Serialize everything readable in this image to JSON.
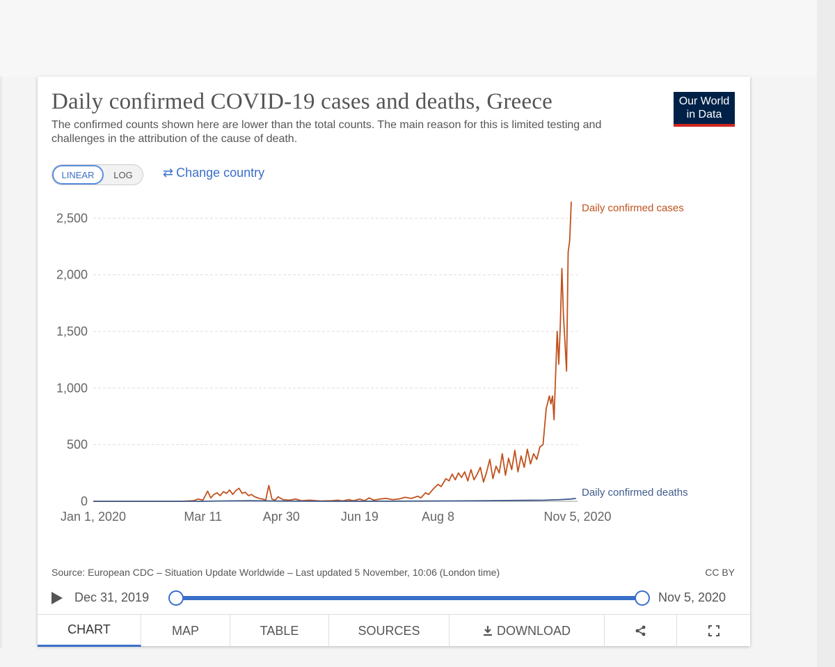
{
  "title": "Daily confirmed COVID-19 cases and deaths, Greece",
  "subtitle": "The confirmed counts shown here are lower than the total counts. The main reason for this is limited testing and challenges in the attribution of the cause of death.",
  "logo": {
    "line1": "Our World",
    "line2": "in Data"
  },
  "scale_toggle": {
    "linear": "LINEAR",
    "log": "LOG",
    "selected": "LINEAR"
  },
  "change_country": "Change country",
  "source_text": "Source: European CDC – Situation Update Worldwide – Last updated 5 November, 10:06 (London time)",
  "license": "CC BY",
  "timeline": {
    "start": "Dec 31, 2019",
    "end": "Nov 5, 2020"
  },
  "tabs": {
    "chart": "CHART",
    "map": "MAP",
    "table": "TABLE",
    "sources": "SOURCES",
    "download": "DOWNLOAD"
  },
  "colors": {
    "cases": "#c0511d",
    "deaths": "#3f5a8a",
    "accent": "#3a6fc8",
    "logo_bg": "#002147"
  },
  "icons": {
    "change": "swap-arrows-icon",
    "play": "play-icon",
    "download": "download-icon",
    "share": "share-icon",
    "fullscreen": "fullscreen-icon"
  },
  "chart_data": {
    "type": "line",
    "title": "Daily confirmed COVID-19 cases and deaths, Greece",
    "x_range": [
      "2020-01-01",
      "2020-11-05"
    ],
    "x_ticks": [
      "Jan 1, 2020",
      "Mar 11",
      "Apr 30",
      "Jun 19",
      "Aug 8",
      "Nov 5, 2020"
    ],
    "ylim": [
      0,
      2650
    ],
    "y_ticks": [
      0,
      500,
      1000,
      1500,
      2000,
      2500
    ],
    "y_tick_labels": [
      "0",
      "500",
      "1,000",
      "1,500",
      "2,000",
      "2,500"
    ],
    "grid": true,
    "legend": "inline-end-labels",
    "series": [
      {
        "name": "Daily confirmed cases",
        "color": "#c0511d",
        "points": [
          [
            "2020-01-01",
            0
          ],
          [
            "2020-02-26",
            0
          ],
          [
            "2020-03-05",
            5
          ],
          [
            "2020-03-08",
            20
          ],
          [
            "2020-03-11",
            10
          ],
          [
            "2020-03-14",
            90
          ],
          [
            "2020-03-16",
            30
          ],
          [
            "2020-03-18",
            60
          ],
          [
            "2020-03-20",
            75
          ],
          [
            "2020-03-22",
            50
          ],
          [
            "2020-03-24",
            85
          ],
          [
            "2020-03-26",
            70
          ],
          [
            "2020-03-28",
            100
          ],
          [
            "2020-03-30",
            60
          ],
          [
            "2020-04-01",
            95
          ],
          [
            "2020-04-03",
            115
          ],
          [
            "2020-04-05",
            70
          ],
          [
            "2020-04-07",
            80
          ],
          [
            "2020-04-09",
            50
          ],
          [
            "2020-04-11",
            60
          ],
          [
            "2020-04-13",
            40
          ],
          [
            "2020-04-16",
            25
          ],
          [
            "2020-04-18",
            20
          ],
          [
            "2020-04-20",
            10
          ],
          [
            "2020-04-22",
            140
          ],
          [
            "2020-04-24",
            20
          ],
          [
            "2020-04-26",
            10
          ],
          [
            "2020-04-28",
            40
          ],
          [
            "2020-05-01",
            15
          ],
          [
            "2020-05-05",
            10
          ],
          [
            "2020-05-09",
            20
          ],
          [
            "2020-05-13",
            5
          ],
          [
            "2020-05-18",
            10
          ],
          [
            "2020-05-25",
            3
          ],
          [
            "2020-06-01",
            5
          ],
          [
            "2020-06-05",
            10
          ],
          [
            "2020-06-08",
            3
          ],
          [
            "2020-06-12",
            15
          ],
          [
            "2020-06-15",
            5
          ],
          [
            "2020-06-19",
            20
          ],
          [
            "2020-06-22",
            5
          ],
          [
            "2020-06-25",
            30
          ],
          [
            "2020-06-28",
            10
          ],
          [
            "2020-07-02",
            20
          ],
          [
            "2020-07-06",
            25
          ],
          [
            "2020-07-10",
            15
          ],
          [
            "2020-07-14",
            20
          ],
          [
            "2020-07-18",
            35
          ],
          [
            "2020-07-22",
            25
          ],
          [
            "2020-07-26",
            45
          ],
          [
            "2020-07-28",
            30
          ],
          [
            "2020-07-31",
            75
          ],
          [
            "2020-08-02",
            60
          ],
          [
            "2020-08-05",
            110
          ],
          [
            "2020-08-08",
            150
          ],
          [
            "2020-08-10",
            130
          ],
          [
            "2020-08-13",
            200
          ],
          [
            "2020-08-15",
            180
          ],
          [
            "2020-08-17",
            240
          ],
          [
            "2020-08-19",
            190
          ],
          [
            "2020-08-21",
            250
          ],
          [
            "2020-08-23",
            210
          ],
          [
            "2020-08-25",
            260
          ],
          [
            "2020-08-27",
            180
          ],
          [
            "2020-08-29",
            280
          ],
          [
            "2020-08-31",
            190
          ],
          [
            "2020-09-02",
            240
          ],
          [
            "2020-09-04",
            300
          ],
          [
            "2020-09-06",
            170
          ],
          [
            "2020-09-08",
            260
          ],
          [
            "2020-09-10",
            370
          ],
          [
            "2020-09-12",
            200
          ],
          [
            "2020-09-14",
            310
          ],
          [
            "2020-09-16",
            250
          ],
          [
            "2020-09-18",
            420
          ],
          [
            "2020-09-20",
            230
          ],
          [
            "2020-09-22",
            380
          ],
          [
            "2020-09-24",
            280
          ],
          [
            "2020-09-26",
            450
          ],
          [
            "2020-09-28",
            260
          ],
          [
            "2020-09-30",
            400
          ],
          [
            "2020-10-02",
            300
          ],
          [
            "2020-10-04",
            460
          ],
          [
            "2020-10-06",
            330
          ],
          [
            "2020-10-08",
            420
          ],
          [
            "2020-10-10",
            370
          ],
          [
            "2020-10-12",
            480
          ],
          [
            "2020-10-14",
            500
          ],
          [
            "2020-10-16",
            820
          ],
          [
            "2020-10-18",
            930
          ],
          [
            "2020-10-19",
            860
          ],
          [
            "2020-10-20",
            930
          ],
          [
            "2020-10-21",
            720
          ],
          [
            "2020-10-23",
            1500
          ],
          [
            "2020-10-24",
            1211
          ],
          [
            "2020-10-25",
            1550
          ],
          [
            "2020-10-26",
            2056
          ],
          [
            "2020-10-27",
            1650
          ],
          [
            "2020-10-29",
            1150
          ],
          [
            "2020-10-30",
            2200
          ],
          [
            "2020-10-31",
            2300
          ],
          [
            "2020-11-01",
            2646
          ]
        ]
      },
      {
        "name": "Daily confirmed deaths",
        "color": "#3f5a8a",
        "points": [
          [
            "2020-01-01",
            0
          ],
          [
            "2020-03-10",
            0
          ],
          [
            "2020-03-25",
            3
          ],
          [
            "2020-04-10",
            5
          ],
          [
            "2020-04-30",
            2
          ],
          [
            "2020-06-01",
            0
          ],
          [
            "2020-07-15",
            1
          ],
          [
            "2020-08-15",
            3
          ],
          [
            "2020-09-10",
            5
          ],
          [
            "2020-09-30",
            8
          ],
          [
            "2020-10-15",
            10
          ],
          [
            "2020-10-25",
            15
          ],
          [
            "2020-11-01",
            20
          ],
          [
            "2020-11-04",
            25
          ]
        ]
      }
    ]
  }
}
